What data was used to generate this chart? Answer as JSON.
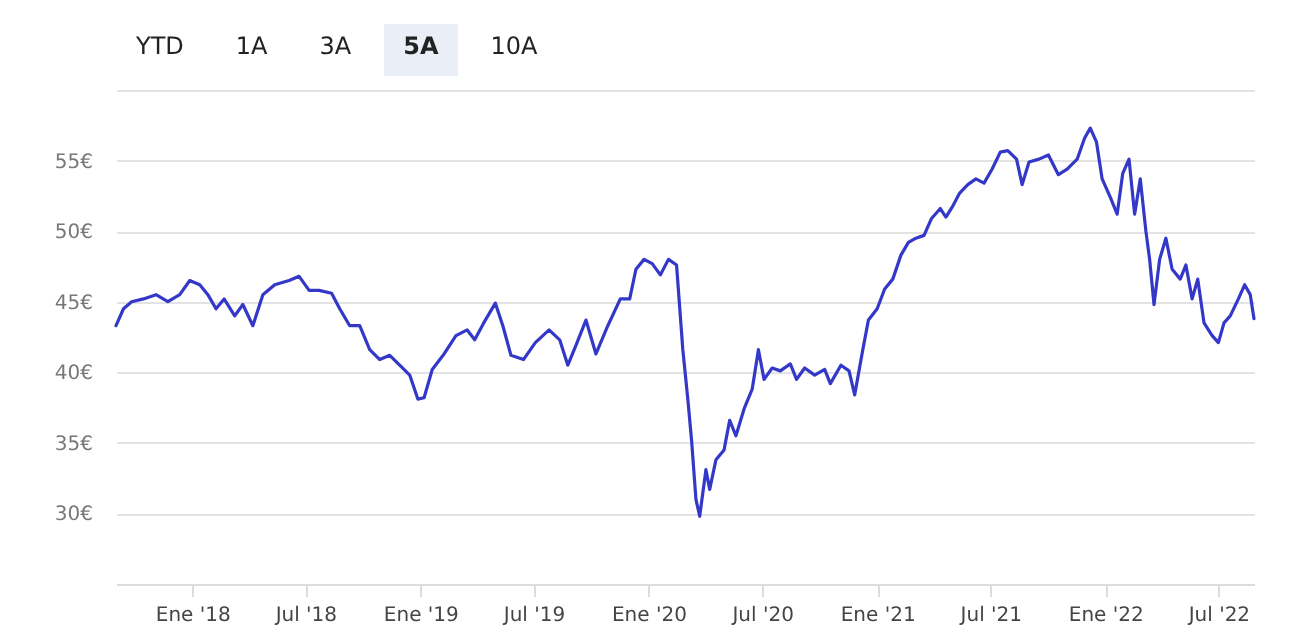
{
  "chart_data": {
    "type": "line",
    "annotations": [
      "YTD",
      "1A",
      "3A",
      "5A",
      "10A"
    ],
    "x": [
      "2017-09-01",
      "2017-09-13",
      "2017-09-26",
      "2017-10-15",
      "2017-11-04",
      "2017-11-23",
      "2017-12-12",
      "2017-12-28",
      "2018-01-13",
      "2018-01-26",
      "2018-02-08",
      "2018-02-21",
      "2018-03-10",
      "2018-03-23",
      "2018-04-08",
      "2018-04-24",
      "2018-05-13",
      "2018-06-05",
      "2018-06-21",
      "2018-07-07",
      "2018-07-23",
      "2018-08-12",
      "2018-08-25",
      "2018-09-10",
      "2018-09-26",
      "2018-10-12",
      "2018-10-28",
      "2018-11-13",
      "2018-11-29",
      "2018-12-15",
      "2018-12-28",
      "2019-01-07",
      "2019-01-20",
      "2019-02-08",
      "2019-02-27",
      "2019-03-17",
      "2019-03-29",
      "2019-04-15",
      "2019-05-01",
      "2019-05-13",
      "2019-05-26",
      "2019-06-15",
      "2019-07-04",
      "2019-07-26",
      "2019-08-12",
      "2019-08-25",
      "2019-09-07",
      "2019-09-23",
      "2019-10-09",
      "2019-10-28",
      "2019-11-17",
      "2019-12-02",
      "2019-12-12",
      "2019-12-25",
      "2020-01-07",
      "2020-01-20",
      "2020-02-02",
      "2020-02-15",
      "2020-02-25",
      "2020-03-04",
      "2020-03-10",
      "2020-03-17",
      "2020-03-23",
      "2020-04-02",
      "2020-04-08",
      "2020-04-18",
      "2020-05-01",
      "2020-05-10",
      "2020-05-20",
      "2020-06-02",
      "2020-06-15",
      "2020-06-25",
      "2020-07-04",
      "2020-07-17",
      "2020-07-30",
      "2020-08-15",
      "2020-08-25",
      "2020-09-07",
      "2020-09-23",
      "2020-10-09",
      "2020-10-18",
      "2020-11-04",
      "2020-11-17",
      "2020-11-26",
      "2020-12-09",
      "2020-12-18",
      "2021-01-01",
      "2021-01-13",
      "2021-01-26",
      "2021-02-08",
      "2021-02-20",
      "2021-03-04",
      "2021-03-17",
      "2021-03-29",
      "2021-04-12",
      "2021-04-21",
      "2021-05-01",
      "2021-05-13",
      "2021-05-26",
      "2021-06-08",
      "2021-06-21",
      "2021-07-04",
      "2021-07-17",
      "2021-07-29",
      "2021-08-12",
      "2021-08-21",
      "2021-09-01",
      "2021-09-17",
      "2021-10-02",
      "2021-10-18",
      "2021-11-01",
      "2021-11-17",
      "2021-11-29",
      "2021-12-08",
      "2021-12-18",
      "2021-12-27",
      "2022-01-10",
      "2022-01-20",
      "2022-01-29",
      "2022-02-08",
      "2022-02-17",
      "2022-02-26",
      "2022-03-07",
      "2022-03-13",
      "2022-03-20",
      "2022-03-29",
      "2022-04-08",
      "2022-04-18",
      "2022-05-01",
      "2022-05-10",
      "2022-05-20",
      "2022-05-29",
      "2022-06-08",
      "2022-06-21",
      "2022-07-01",
      "2022-07-10",
      "2022-07-20",
      "2022-08-02",
      "2022-08-12",
      "2022-08-21",
      "2022-08-27"
    ],
    "series": [
      {
        "color": "#3438c8",
        "values": [
          43.3,
          44.5,
          45,
          45.2,
          45.5,
          45,
          45.5,
          46.5,
          46.2,
          45.5,
          44.5,
          45.2,
          44,
          44.8,
          43.3,
          45.5,
          46.2,
          46.5,
          46.8,
          45.8,
          45.8,
          45.6,
          44.5,
          43.3,
          43.3,
          41.6,
          40.9,
          41.2,
          40.5,
          39.8,
          38.1,
          38.2,
          40.2,
          41.3,
          42.6,
          43,
          42.3,
          43.7,
          44.9,
          43.3,
          41.2,
          40.9,
          42.1,
          43,
          42.3,
          40.5,
          41.9,
          43.7,
          41.3,
          43.3,
          45.2,
          45.2,
          47.3,
          48,
          47.7,
          46.9,
          48,
          47.6,
          41.6,
          38.1,
          35.2,
          31,
          29.8,
          33.1,
          31.7,
          33.8,
          34.5,
          36.6,
          35.5,
          37.4,
          38.8,
          41.6,
          39.5,
          40.3,
          40.1,
          40.6,
          39.5,
          40.3,
          39.8,
          40.2,
          39.2,
          40.5,
          40.1,
          38.4,
          41.6,
          43.7,
          44.5,
          45.9,
          46.6,
          48.3,
          49.2,
          49.5,
          49.7,
          50.9,
          51.6,
          51,
          51.7,
          52.7,
          53.3,
          53.7,
          53.4,
          54.4,
          55.6,
          55.7,
          55.1,
          53.3,
          54.9,
          55.1,
          55.4,
          54,
          54.4,
          55.1,
          56.6,
          57.3,
          56.3,
          53.7,
          52.3,
          51.2,
          54.1,
          55.1,
          51.2,
          53.7,
          50,
          48,
          44.8,
          48,
          49.5,
          47.3,
          46.6,
          47.6,
          45.2,
          46.6,
          43.5,
          42.6,
          42.1,
          43.5,
          44,
          45.2,
          46.2,
          45.5,
          43.8
        ]
      }
    ],
    "xlim": [
      "2017-09-01",
      "2022-08-27"
    ],
    "xticks": [
      {
        "value": "2018-01-01",
        "label": "Ene '18"
      },
      {
        "value": "2018-07-01",
        "label": "Jul '18"
      },
      {
        "value": "2019-01-01",
        "label": "Ene '19"
      },
      {
        "value": "2019-07-01",
        "label": "Jul '19"
      },
      {
        "value": "2020-01-01",
        "label": "Ene '20"
      },
      {
        "value": "2020-07-01",
        "label": "Jul '20"
      },
      {
        "value": "2021-01-01",
        "label": "Ene '21"
      },
      {
        "value": "2021-07-01",
        "label": "Jul '21"
      },
      {
        "value": "2022-01-01",
        "label": "Ene '22"
      },
      {
        "value": "2022-07-01",
        "label": "Jul '22"
      }
    ],
    "ylim": [
      25,
      60
    ],
    "yticks": [
      {
        "value": 30,
        "label": "30€"
      },
      {
        "value": 35,
        "label": "35€"
      },
      {
        "value": 40,
        "label": "40€"
      },
      {
        "value": 45,
        "label": "45€"
      },
      {
        "value": 50,
        "label": "50€"
      },
      {
        "value": 55,
        "label": "55€"
      },
      {
        "value": 60,
        "label": null
      }
    ],
    "grid": "y",
    "marker": "none",
    "line_style": "solid"
  }
}
